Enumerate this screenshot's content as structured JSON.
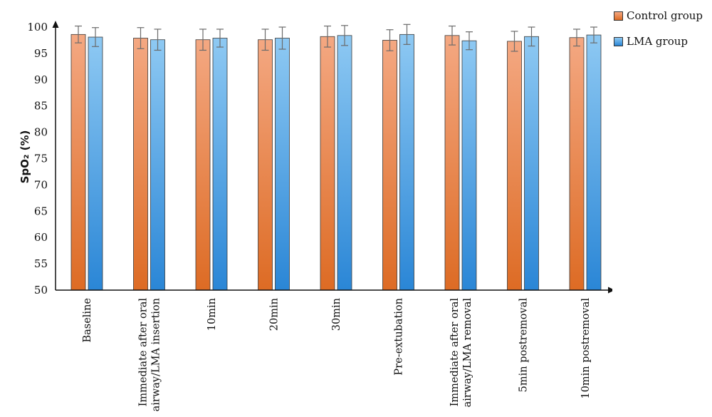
{
  "chart_data": {
    "type": "bar",
    "title": "",
    "xlabel": "",
    "ylabel": "SpO₂ (%)",
    "ylim": [
      50,
      100
    ],
    "yticks": [
      50,
      55,
      60,
      65,
      70,
      75,
      80,
      85,
      90,
      95,
      100
    ],
    "grid": false,
    "legend_position": "top-right",
    "categories": [
      "Baseline",
      "Immediate after oral airway/LMA insertion",
      "10min",
      "20min",
      "30min",
      "Pre-extubation",
      "Immediate after oral airway/LMA removal",
      "5min postremoval",
      "10min postremoval"
    ],
    "category_lines": [
      [
        "Baseline"
      ],
      [
        "Immediate after oral",
        "airway/LMA insertion"
      ],
      [
        "10min"
      ],
      [
        "20min"
      ],
      [
        "30min"
      ],
      [
        "Pre-extubation"
      ],
      [
        "Immediate after oral",
        "airway/LMA removal"
      ],
      [
        "5min postremoval"
      ],
      [
        "10min postremoval"
      ]
    ],
    "series": [
      {
        "name": "Control group",
        "color_top": "#f4a882",
        "color_bottom": "#dd6b24",
        "values": [
          98.6,
          97.9,
          97.6,
          97.6,
          98.2,
          97.5,
          98.4,
          97.3,
          98.0
        ],
        "errors": [
          1.6,
          2.0,
          2.0,
          2.0,
          2.0,
          2.0,
          1.8,
          1.9,
          1.6
        ]
      },
      {
        "name": "LMA group",
        "color_top": "#8ec9f3",
        "color_bottom": "#2a86d6",
        "values": [
          98.1,
          97.6,
          97.9,
          97.9,
          98.4,
          98.6,
          97.4,
          98.2,
          98.5
        ],
        "errors": [
          1.8,
          2.0,
          1.7,
          2.1,
          1.9,
          1.9,
          1.7,
          1.8,
          1.5
        ]
      }
    ]
  }
}
